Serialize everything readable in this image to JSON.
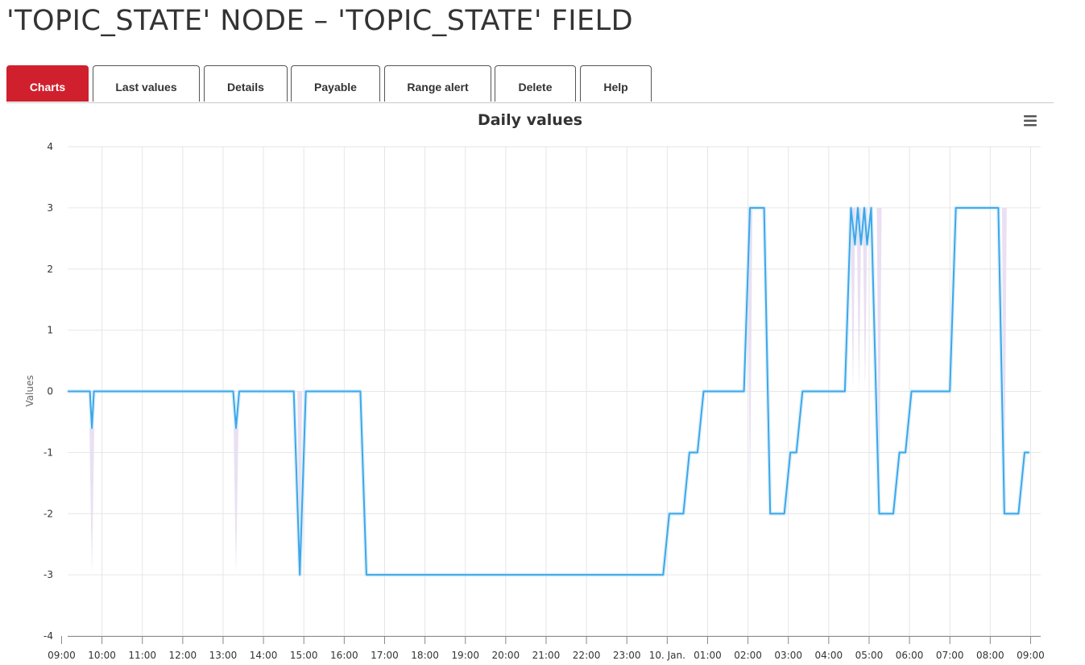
{
  "page": {
    "title": "'TOPIC_STATE' NODE – 'TOPIC_STATE' FIELD"
  },
  "tabs": [
    {
      "label": "Charts",
      "active": true
    },
    {
      "label": "Last values",
      "active": false
    },
    {
      "label": "Details",
      "active": false
    },
    {
      "label": "Payable",
      "active": false
    },
    {
      "label": "Range alert",
      "active": false
    },
    {
      "label": "Delete",
      "active": false
    },
    {
      "label": "Help",
      "active": false
    }
  ],
  "menu": {
    "icon": "hamburger-menu-icon"
  },
  "colors": {
    "accent": "#d0202e",
    "series": "#3ba7ea",
    "band": "#e6daf0"
  },
  "chart_data": {
    "type": "line",
    "title": "Daily values",
    "xlabel": "",
    "ylabel": "Values",
    "ylim": [
      -4,
      4
    ],
    "yticks": [
      -4,
      -3,
      -2,
      -1,
      0,
      1,
      2,
      3,
      4
    ],
    "xlim": [
      9.15,
      33.25
    ],
    "xticks": [
      {
        "x": 9,
        "label": "09:00"
      },
      {
        "x": 10,
        "label": "10:00"
      },
      {
        "x": 11,
        "label": "11:00"
      },
      {
        "x": 12,
        "label": "12:00"
      },
      {
        "x": 13,
        "label": "13:00"
      },
      {
        "x": 14,
        "label": "14:00"
      },
      {
        "x": 15,
        "label": "15:00"
      },
      {
        "x": 16,
        "label": "16:00"
      },
      {
        "x": 17,
        "label": "17:00"
      },
      {
        "x": 18,
        "label": "18:00"
      },
      {
        "x": 19,
        "label": "19:00"
      },
      {
        "x": 20,
        "label": "20:00"
      },
      {
        "x": 21,
        "label": "21:00"
      },
      {
        "x": 22,
        "label": "22:00"
      },
      {
        "x": 23,
        "label": "23:00"
      },
      {
        "x": 24,
        "label": "10. Jan."
      },
      {
        "x": 25,
        "label": "01:00"
      },
      {
        "x": 26,
        "label": "02:00"
      },
      {
        "x": 27,
        "label": "03:00"
      },
      {
        "x": 28,
        "label": "04:00"
      },
      {
        "x": 29,
        "label": "05:00"
      },
      {
        "x": 30,
        "label": "06:00"
      },
      {
        "x": 31,
        "label": "07:00"
      },
      {
        "x": 32,
        "label": "08:00"
      },
      {
        "x": 33,
        "label": "09:00"
      }
    ],
    "grid": true,
    "legend": "none",
    "series": [
      {
        "points": [
          [
            9.17,
            0
          ],
          [
            9.7,
            0
          ],
          [
            9.75,
            -0.6
          ],
          [
            9.8,
            0
          ],
          [
            13.25,
            0
          ],
          [
            13.32,
            -0.6
          ],
          [
            13.4,
            0
          ],
          [
            14.75,
            0
          ],
          [
            14.9,
            -3
          ],
          [
            15.05,
            0
          ],
          [
            16.4,
            0
          ],
          [
            16.55,
            -3
          ],
          [
            23.9,
            -3
          ],
          [
            24.05,
            -2
          ],
          [
            24.4,
            -2
          ],
          [
            24.55,
            -1
          ],
          [
            24.75,
            -1
          ],
          [
            24.9,
            0
          ],
          [
            25.9,
            0
          ],
          [
            26.05,
            3
          ],
          [
            26.4,
            3
          ],
          [
            26.55,
            -2
          ],
          [
            26.9,
            -2
          ],
          [
            27.05,
            -1
          ],
          [
            27.2,
            -1
          ],
          [
            27.35,
            0
          ],
          [
            28.4,
            0
          ],
          [
            28.55,
            3
          ],
          [
            28.65,
            2.4
          ],
          [
            28.72,
            3
          ],
          [
            28.8,
            2.4
          ],
          [
            28.88,
            3
          ],
          [
            28.95,
            2.4
          ],
          [
            29.05,
            3
          ],
          [
            29.25,
            -2
          ],
          [
            29.6,
            -2
          ],
          [
            29.75,
            -1
          ],
          [
            29.9,
            -1
          ],
          [
            30.05,
            0
          ],
          [
            31.0,
            0
          ],
          [
            31.15,
            3
          ],
          [
            32.2,
            3
          ],
          [
            32.35,
            -2
          ],
          [
            32.7,
            -2
          ],
          [
            32.85,
            -1
          ],
          [
            32.95,
            -1
          ]
        ]
      }
    ],
    "range_bands": [
      {
        "x": 9.75,
        "low": -3,
        "high": -0.6
      },
      {
        "x": 13.32,
        "low": -3,
        "high": -0.6
      },
      {
        "x": 14.9,
        "low": -3,
        "high": 0
      },
      {
        "x": 26.05,
        "low": -2,
        "high": 3
      },
      {
        "x": 28.6,
        "low": 0,
        "high": 3
      },
      {
        "x": 28.75,
        "low": 0,
        "high": 3
      },
      {
        "x": 28.9,
        "low": 0,
        "high": 3
      },
      {
        "x": 29.25,
        "low": -2,
        "high": 3
      },
      {
        "x": 32.35,
        "low": -2,
        "high": 3
      }
    ]
  }
}
